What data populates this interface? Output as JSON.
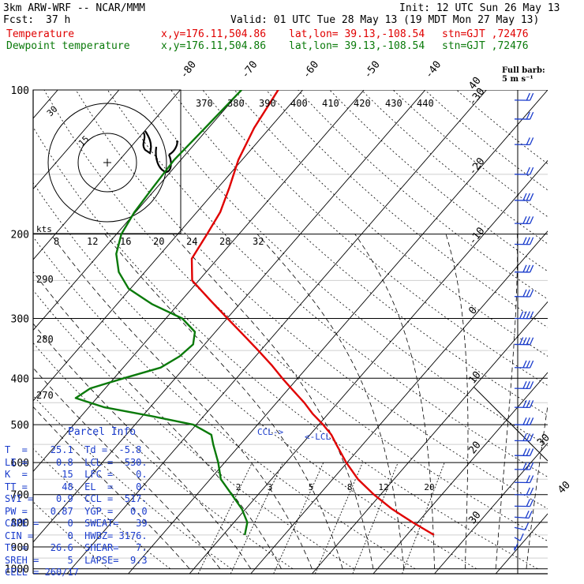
{
  "header": {
    "model": "3km ARW-WRF -- NCAR/MMM",
    "init": "Init: 12 UTC Sun 26 May 13",
    "fcst_label": "Fcst:",
    "fcst_hours": "37 h",
    "valid": "Valid: 01 UTC Tue 28 May 13 (19 MDT Mon 27 May 13)"
  },
  "legend": {
    "temperature": "Temperature",
    "dewpoint": "Dewpoint temperature",
    "xy": "x,y=176.11,504.86",
    "latlon": "lat,lon= 39.13,-108.54",
    "stn": "stn=GJT ,72476"
  },
  "full_barb": {
    "line1": "Full barb:",
    "line2": "5 m s⁻¹"
  },
  "parcel_info": {
    "title": "Parcel Info",
    "rows": [
      "T  =    25.1  Td =  -5.8",
      "LI =     0.8  LCL =  530.",
      "K  =      15  LFC =    0.",
      "TT =      48  EL  =    0.",
      "SVI =    0.9  CCL =  517.",
      "PW =    0.87  YGP =   0.0",
      "CAPE =     0  SWEAT=   39",
      "CIN =      0  HWBZ= 3176.",
      "Tc =    26.6  SHEAR=   7.",
      "SREH =     5  LAPSE=  9.3",
      "CELL = 260/17"
    ]
  },
  "labels": {
    "ccl": "CCL->",
    "lcl": "<-LCL",
    "kts": "kts"
  },
  "chart_data": {
    "type": "line",
    "pressure_levels": [
      100,
      200,
      300,
      400,
      500,
      600,
      700,
      800,
      900,
      1000
    ],
    "pressure_tick_labels": [
      "100",
      "200",
      "300",
      "400",
      "500",
      "600",
      "700",
      "800",
      "900",
      "1000"
    ],
    "isotherm_labels": [
      -80,
      -70,
      -60,
      -50,
      -40,
      -30,
      -20,
      -10,
      0,
      10,
      20,
      30,
      40
    ],
    "theta_labels": [
      370,
      380,
      390,
      400,
      410,
      420,
      430,
      440
    ],
    "theta_labels_left": [
      290,
      280,
      270
    ],
    "mixing_ratio_labels": [
      2,
      3,
      5,
      8,
      12,
      20
    ],
    "hodograph": {
      "ring_labels": [
        15,
        30
      ],
      "axis_speeds": [
        8,
        12,
        16,
        20,
        24,
        28,
        32
      ],
      "units": "kts"
    },
    "series": [
      {
        "name": "Temperature",
        "color": "#e00000",
        "pressure": [
          850,
          800,
          750,
          700,
          650,
          600,
          550,
          525,
          500,
          475,
          450,
          420,
          400,
          375,
          350,
          325,
          300,
          275,
          250,
          225,
          200,
          180,
          160,
          140,
          120,
          100
        ],
        "temp": [
          25.1,
          19.8,
          14.5,
          9.5,
          4.7,
          0.4,
          -3.8,
          -6.0,
          -8.8,
          -12.0,
          -15.0,
          -19.2,
          -22.1,
          -25.8,
          -30.0,
          -34.6,
          -39.6,
          -45.0,
          -50.8,
          -54.0,
          -55.0,
          -56.0,
          -58.0,
          -60.5,
          -62.5,
          -64.0
        ]
      },
      {
        "name": "Dewpoint temperature",
        "color": "#0a7a0a",
        "pressure": [
          850,
          800,
          750,
          700,
          650,
          600,
          550,
          525,
          500,
          480,
          460,
          440,
          420,
          400,
          380,
          360,
          340,
          320,
          300,
          280,
          260,
          240,
          220,
          200,
          180,
          160,
          140,
          120,
          100
        ],
        "temp": [
          -5.8,
          -7.2,
          -10.0,
          -13.7,
          -17.7,
          -20.5,
          -23.9,
          -25.6,
          -30.0,
          -38.0,
          -47.0,
          -53.0,
          -52.0,
          -48.0,
          -43.5,
          -42.0,
          -41.5,
          -43.0,
          -47.0,
          -54.0,
          -60.0,
          -64.0,
          -67.0,
          -69.0,
          -70.0,
          -70.5,
          -71.0,
          -70.5,
          -70.0
        ]
      }
    ],
    "wind_barbs": {
      "units": "m s-1, full barb = 5",
      "pressure": [
        900,
        860,
        820,
        780,
        740,
        700,
        660,
        620,
        580,
        540,
        500,
        460,
        420,
        380,
        340,
        300,
        270,
        240,
        210,
        190,
        170,
        150,
        130,
        115,
        105
      ],
      "direction_deg": [
        180,
        200,
        220,
        240,
        250,
        250,
        250,
        250,
        250,
        250,
        250,
        250,
        250,
        250,
        250,
        250,
        250,
        250,
        250,
        250,
        250,
        250,
        250,
        250,
        250
      ],
      "speed_ms": [
        4,
        5,
        5,
        8,
        10,
        12,
        12,
        13,
        13,
        14,
        15,
        15,
        16,
        17,
        18,
        18,
        17,
        16,
        15,
        14,
        14,
        12,
        11,
        10,
        10
      ]
    }
  }
}
